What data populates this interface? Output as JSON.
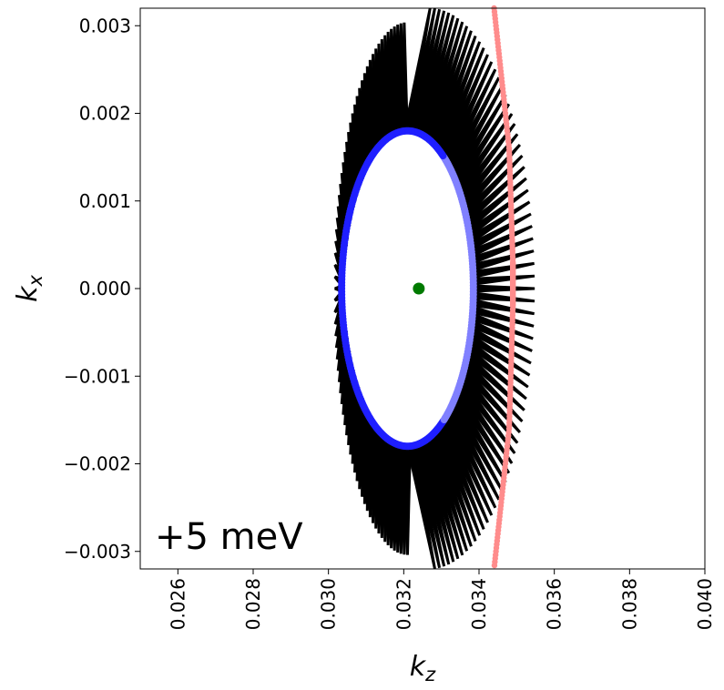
{
  "chart_data": {
    "type": "scatter",
    "title": "",
    "xlabel": "k",
    "xlabel_sub": "z",
    "ylabel": "k",
    "ylabel_sub": "x",
    "xlim": [
      0.025,
      0.04
    ],
    "ylim": [
      -0.0032,
      0.0032
    ],
    "x_ticks": [
      0.026,
      0.028,
      0.03,
      0.032,
      0.034,
      0.036,
      0.038,
      0.04
    ],
    "x_tick_labels": [
      "0.026",
      "0.028",
      "0.030",
      "0.032",
      "0.034",
      "0.036",
      "0.038",
      "0.040"
    ],
    "y_ticks": [
      0.003,
      0.002,
      0.001,
      0.0,
      -0.001,
      -0.002,
      -0.003
    ],
    "y_tick_labels": [
      "0.003",
      "0.002",
      "0.001",
      "0.000",
      "−0.001",
      "−0.002",
      "−0.003"
    ],
    "annotation": "+5 meV",
    "grid": false,
    "series": [
      {
        "kind": "ellipse-scatter",
        "center": [
          0.0321,
          0.0
        ],
        "rx": 0.00175,
        "ry": 0.0018,
        "color": "#1f1fff",
        "color_faded": "#8080ff"
      },
      {
        "kind": "point",
        "x": 0.0324,
        "y": 0.0,
        "color": "#007a00"
      },
      {
        "kind": "line-scatter",
        "points": [
          [
            0.0344,
            0.0032
          ],
          [
            0.0348,
            0.0016
          ],
          [
            0.0349,
            0.0003
          ],
          [
            0.0349,
            -0.0002
          ],
          [
            0.0348,
            -0.0016
          ],
          [
            0.0344,
            -0.0032
          ]
        ],
        "color": "#ff8c8c"
      },
      {
        "kind": "arrow-field",
        "color": "#000000",
        "region_center": [
          0.0321,
          0.0
        ],
        "region_rx": 0.0028,
        "region_ry": 0.0032
      }
    ]
  }
}
